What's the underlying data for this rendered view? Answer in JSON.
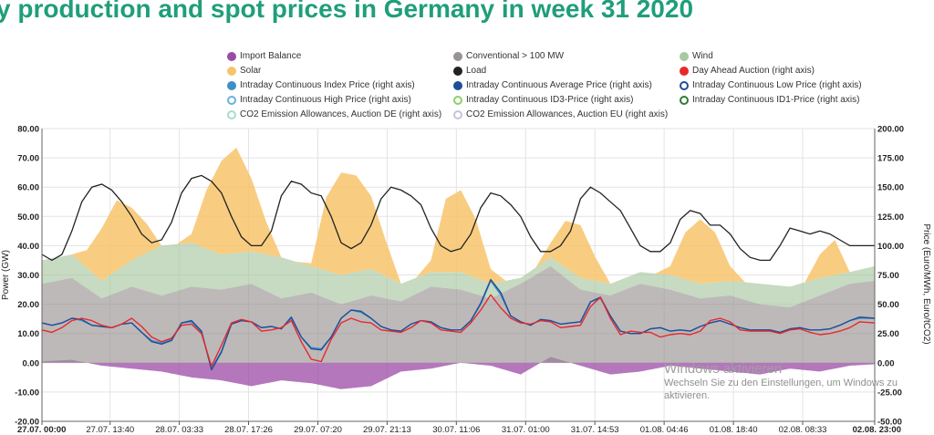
{
  "title": "y production and spot prices in Germany in week 31 2020",
  "watermark": {
    "line1": "Windows aktivieren",
    "line2": "Wechseln Sie zu den Einstellungen, um Windows zu aktivieren."
  },
  "legend": [
    {
      "label": "Import Balance",
      "color": "#9b4aa6",
      "style": "fill"
    },
    {
      "label": "Conventional > 100 MW",
      "color": "#999494",
      "style": "fill"
    },
    {
      "label": "Wind",
      "color": "#a8c8a0",
      "style": "fill"
    },
    {
      "label": "Solar",
      "color": "#f7c46b",
      "style": "fill"
    },
    {
      "label": "Load",
      "color": "#222222",
      "style": "fill"
    },
    {
      "label": "Day Ahead Auction (right axis)",
      "color": "#e8282b",
      "style": "fill"
    },
    {
      "label": "Intraday Continuous Index Price (right axis)",
      "color": "#3d8fc6",
      "style": "fill"
    },
    {
      "label": "Intraday Continuous Average Price (right axis)",
      "color": "#1f4e99",
      "style": "fill"
    },
    {
      "label": "Intraday Continuous Low Price (right axis)",
      "color": "#1f4e99",
      "style": "ring"
    },
    {
      "label": "Intraday Continuous High Price (right axis)",
      "color": "#6ab0de",
      "style": "ring"
    },
    {
      "label": "Intraday Continuous ID3-Price (right axis)",
      "color": "#8ccf6a",
      "style": "ring"
    },
    {
      "label": "Intraday Continuous ID1-Price (right axis)",
      "color": "#2e7d32",
      "style": "ring"
    },
    {
      "label": "CO2 Emission Allowances, Auction DE (right axis)",
      "color": "#a8dcc8",
      "style": "ring"
    },
    {
      "label": "CO2 Emission Allowances, Auction EU (right axis)",
      "color": "#c8c2dc",
      "style": "ring"
    }
  ],
  "chart_data": {
    "type": "area",
    "title": "y production and spot prices in Germany in week 31 2020",
    "ylabel": "Power (GW)",
    "ylabel_right": "Price (Euro/MWh, Euro/tCO2)",
    "ylim": [
      -20,
      80
    ],
    "ylim_right": [
      -50,
      200
    ],
    "yticks": [
      "-20.00",
      "-10.00",
      "0.00",
      "10.00",
      "20.00",
      "30.00",
      "40.00",
      "50.00",
      "60.00",
      "70.00",
      "80.00"
    ],
    "yticks_right": [
      "-50.00",
      "-25.00",
      "0.00",
      "25.00",
      "50.00",
      "75.00",
      "100.00",
      "125.00",
      "150.00",
      "175.00",
      "200.00"
    ],
    "xlim_hours": [
      0,
      167
    ],
    "xticks": [
      {
        "h": 0,
        "label": "27.07. 00:00"
      },
      {
        "h": 13.67,
        "label": "27.07. 13:40"
      },
      {
        "h": 27.55,
        "label": "28.07. 03:33"
      },
      {
        "h": 41.43,
        "label": "28.07. 17:26"
      },
      {
        "h": 55.33,
        "label": "29.07. 07:20"
      },
      {
        "h": 69.22,
        "label": "29.07. 21:13"
      },
      {
        "h": 83.1,
        "label": "30.07. 11:06"
      },
      {
        "h": 97.0,
        "label": "31.07. 01:00"
      },
      {
        "h": 110.88,
        "label": "31.07. 14:53"
      },
      {
        "h": 124.77,
        "label": "01.08. 04:46"
      },
      {
        "h": 138.67,
        "label": "01.08. 18:40"
      },
      {
        "h": 152.55,
        "label": "02.08. 08:33"
      },
      {
        "h": 167,
        "label": "02.08. 23:00"
      }
    ],
    "series": [
      {
        "name": "Import Balance",
        "axis": "left",
        "color": "#9b4aa6",
        "x": [
          0,
          6,
          12,
          18,
          24,
          30,
          36,
          42,
          48,
          54,
          60,
          66,
          72,
          78,
          84,
          90,
          96,
          102,
          108,
          114,
          120,
          126,
          132,
          138,
          144,
          150,
          156,
          162,
          167
        ],
        "values": [
          0.5,
          1,
          -1,
          -2,
          -3,
          -5,
          -6,
          -8,
          -6,
          -7,
          -9,
          -8,
          -3,
          -2,
          0,
          -1,
          -4,
          2,
          -1,
          -4,
          -3,
          -1,
          -2,
          -3,
          -4,
          -2,
          -3,
          -1,
          -0.5
        ]
      },
      {
        "name": "Conventional > 100 MW",
        "axis": "left",
        "color": "#999494",
        "x": [
          0,
          6,
          12,
          18,
          24,
          30,
          36,
          42,
          48,
          54,
          60,
          66,
          72,
          78,
          84,
          90,
          96,
          102,
          108,
          114,
          120,
          126,
          132,
          138,
          144,
          150,
          156,
          162,
          167
        ],
        "values": [
          27,
          29,
          22,
          26,
          23,
          26,
          25,
          27,
          22,
          24,
          20,
          23,
          21,
          26,
          25,
          22,
          27,
          33,
          25,
          23,
          27,
          25,
          22,
          23,
          20,
          19,
          23,
          27,
          28
        ]
      },
      {
        "name": "Wind",
        "axis": "left",
        "color": "#a8c8a0",
        "x": [
          0,
          6,
          12,
          18,
          24,
          30,
          36,
          42,
          48,
          54,
          60,
          66,
          72,
          78,
          84,
          90,
          96,
          102,
          108,
          114,
          120,
          126,
          132,
          138,
          144,
          150,
          156,
          162,
          167
        ],
        "values": [
          8,
          8,
          6,
          9,
          17,
          15,
          12,
          11,
          14,
          9,
          10,
          9,
          6,
          5,
          6,
          5,
          2,
          3,
          4,
          4,
          4,
          5,
          5,
          5,
          7,
          7,
          6,
          4,
          5
        ]
      },
      {
        "name": "Solar",
        "axis": "left",
        "color": "#f7c46b",
        "x": [
          0,
          3,
          6,
          9,
          12,
          15,
          18,
          21,
          24,
          27,
          30,
          33,
          36,
          39,
          42,
          45,
          48,
          51,
          54,
          57,
          60,
          63,
          66,
          69,
          72,
          75,
          78,
          81,
          84,
          87,
          90,
          93,
          96,
          99,
          102,
          105,
          108,
          111,
          114,
          117,
          120,
          123,
          126,
          129,
          132,
          135,
          138,
          141,
          144,
          147,
          150,
          153,
          156,
          159,
          162,
          167
        ],
        "values": [
          0,
          0,
          0,
          6,
          18,
          24,
          18,
          10,
          0,
          0,
          3,
          20,
          32,
          36,
          25,
          11,
          0,
          0,
          1,
          25,
          35,
          33,
          25,
          12,
          0,
          0,
          4,
          25,
          28,
          20,
          5,
          0,
          0,
          0,
          5,
          16,
          18,
          8,
          0,
          0,
          0,
          0,
          3,
          16,
          22,
          17,
          5,
          0,
          0,
          0,
          0,
          0,
          8,
          12,
          0,
          0
        ]
      },
      {
        "name": "Load",
        "axis": "left",
        "color": "#222222",
        "x": [
          0,
          2,
          4,
          6,
          8,
          10,
          12,
          14,
          16,
          18,
          20,
          22,
          24,
          26,
          28,
          30,
          32,
          34,
          36,
          38,
          40,
          42,
          44,
          46,
          48,
          50,
          52,
          54,
          56,
          58,
          60,
          62,
          64,
          66,
          68,
          70,
          72,
          74,
          76,
          78,
          80,
          82,
          84,
          86,
          88,
          90,
          92,
          94,
          96,
          98,
          100,
          102,
          104,
          106,
          108,
          110,
          112,
          114,
          116,
          118,
          120,
          122,
          124,
          126,
          128,
          130,
          132,
          134,
          136,
          138,
          140,
          142,
          144,
          146,
          148,
          150,
          152,
          154,
          156,
          158,
          160,
          162,
          164,
          167
        ],
        "values": [
          37,
          35,
          37,
          45,
          55,
          60,
          61,
          59,
          55,
          50,
          44,
          41,
          42,
          48,
          58,
          63,
          64,
          62,
          58,
          50,
          43,
          40,
          40,
          45,
          57,
          62,
          61,
          58,
          57,
          50,
          41,
          39,
          41,
          47,
          56,
          60,
          59,
          57,
          54,
          46,
          40,
          38,
          39,
          44,
          53,
          58,
          57,
          54,
          50,
          43,
          38,
          38,
          40,
          45,
          56,
          60,
          58,
          55,
          52,
          46,
          40,
          38,
          38,
          41,
          49,
          52,
          51,
          47,
          47,
          44,
          39,
          36,
          35,
          35,
          40,
          46,
          45,
          44,
          45,
          44,
          42,
          40,
          40,
          40
        ]
      },
      {
        "name": "Day Ahead Auction (right axis)",
        "axis": "right",
        "color": "#e8282b",
        "x": [
          0,
          2,
          4,
          6,
          8,
          10,
          12,
          14,
          16,
          18,
          20,
          22,
          24,
          26,
          28,
          30,
          32,
          34,
          36,
          38,
          40,
          42,
          44,
          46,
          48,
          50,
          52,
          54,
          56,
          58,
          60,
          62,
          64,
          66,
          68,
          70,
          72,
          74,
          76,
          78,
          80,
          82,
          84,
          86,
          88,
          90,
          92,
          94,
          96,
          98,
          100,
          102,
          104,
          106,
          108,
          110,
          112,
          114,
          116,
          118,
          120,
          122,
          124,
          126,
          128,
          130,
          132,
          134,
          136,
          138,
          140,
          142,
          144,
          146,
          148,
          150,
          152,
          154,
          156,
          158,
          160,
          162,
          164,
          167
        ],
        "values": [
          28,
          26,
          30,
          36,
          38,
          36,
          32,
          30,
          33,
          38,
          31,
          22,
          18,
          21,
          32,
          33,
          25,
          -3,
          15,
          34,
          37,
          35,
          27,
          28,
          30,
          36,
          18,
          3,
          1,
          20,
          34,
          38,
          35,
          34,
          28,
          27,
          26,
          30,
          36,
          34,
          28,
          27,
          26,
          34,
          45,
          58,
          47,
          38,
          34,
          33,
          36,
          35,
          30,
          31,
          32,
          48,
          56,
          38,
          24,
          27,
          26,
          26,
          22,
          24,
          25,
          24,
          27,
          36,
          38,
          35,
          28,
          27,
          27,
          27,
          25,
          28,
          29,
          26,
          24,
          25,
          27,
          30,
          35,
          34
        ]
      },
      {
        "name": "Intraday Continuous Index Price (right axis)",
        "axis": "right",
        "color": "#3d8fc6",
        "x": [
          0,
          2,
          4,
          6,
          8,
          10,
          12,
          14,
          16,
          18,
          20,
          22,
          24,
          26,
          28,
          30,
          32,
          34,
          36,
          38,
          40,
          42,
          44,
          46,
          48,
          50,
          52,
          54,
          56,
          58,
          60,
          62,
          64,
          66,
          68,
          70,
          72,
          74,
          76,
          78,
          80,
          82,
          84,
          86,
          88,
          90,
          92,
          94,
          96,
          98,
          100,
          102,
          104,
          106,
          108,
          110,
          112,
          114,
          116,
          118,
          120,
          122,
          124,
          126,
          128,
          130,
          132,
          134,
          136,
          138,
          140,
          142,
          144,
          146,
          148,
          150,
          152,
          154,
          156,
          158,
          160,
          162,
          164,
          167
        ],
        "values": [
          34,
          32,
          34,
          38,
          36,
          32,
          31,
          30,
          33,
          34,
          26,
          19,
          17,
          20,
          34,
          35,
          26,
          -5,
          10,
          33,
          36,
          35,
          30,
          31,
          29,
          38,
          22,
          13,
          12,
          22,
          38,
          45,
          43,
          38,
          31,
          28,
          27,
          33,
          36,
          35,
          30,
          28,
          28,
          36,
          50,
          70,
          58,
          40,
          35,
          32,
          37,
          36,
          33,
          34,
          35,
          52,
          55,
          40,
          27,
          25,
          25,
          29,
          30,
          27,
          28,
          27,
          31,
          34,
          36,
          33,
          30,
          28,
          28,
          28,
          26,
          29,
          30,
          28,
          28,
          29,
          32,
          36,
          38,
          38
        ]
      },
      {
        "name": "Intraday Continuous Average Price (right axis)",
        "axis": "right",
        "color": "#1f4e99",
        "x": [
          0,
          2,
          4,
          6,
          8,
          10,
          12,
          14,
          16,
          18,
          20,
          22,
          24,
          26,
          28,
          30,
          32,
          34,
          36,
          38,
          40,
          42,
          44,
          46,
          48,
          50,
          52,
          54,
          56,
          58,
          60,
          62,
          64,
          66,
          68,
          70,
          72,
          74,
          76,
          78,
          80,
          82,
          84,
          86,
          88,
          90,
          92,
          94,
          96,
          98,
          100,
          102,
          104,
          106,
          108,
          110,
          112,
          114,
          116,
          118,
          120,
          122,
          124,
          126,
          128,
          130,
          132,
          134,
          136,
          138,
          140,
          142,
          144,
          146,
          148,
          150,
          152,
          154,
          156,
          158,
          160,
          162,
          164,
          167
        ],
        "values": [
          34,
          32,
          34,
          38,
          37,
          32,
          31,
          30,
          33,
          34,
          26,
          18,
          16,
          19,
          34,
          36,
          27,
          -6,
          9,
          33,
          36,
          35,
          30,
          31,
          29,
          39,
          22,
          12,
          11,
          22,
          38,
          45,
          44,
          38,
          31,
          28,
          27,
          33,
          36,
          35,
          30,
          28,
          28,
          36,
          51,
          71,
          60,
          40,
          35,
          32,
          37,
          36,
          33,
          34,
          35,
          52,
          56,
          40,
          27,
          25,
          25,
          29,
          30,
          27,
          28,
          27,
          31,
          34,
          36,
          33,
          30,
          28,
          28,
          28,
          26,
          29,
          30,
          28,
          28,
          29,
          32,
          36,
          39,
          38
        ]
      }
    ]
  }
}
